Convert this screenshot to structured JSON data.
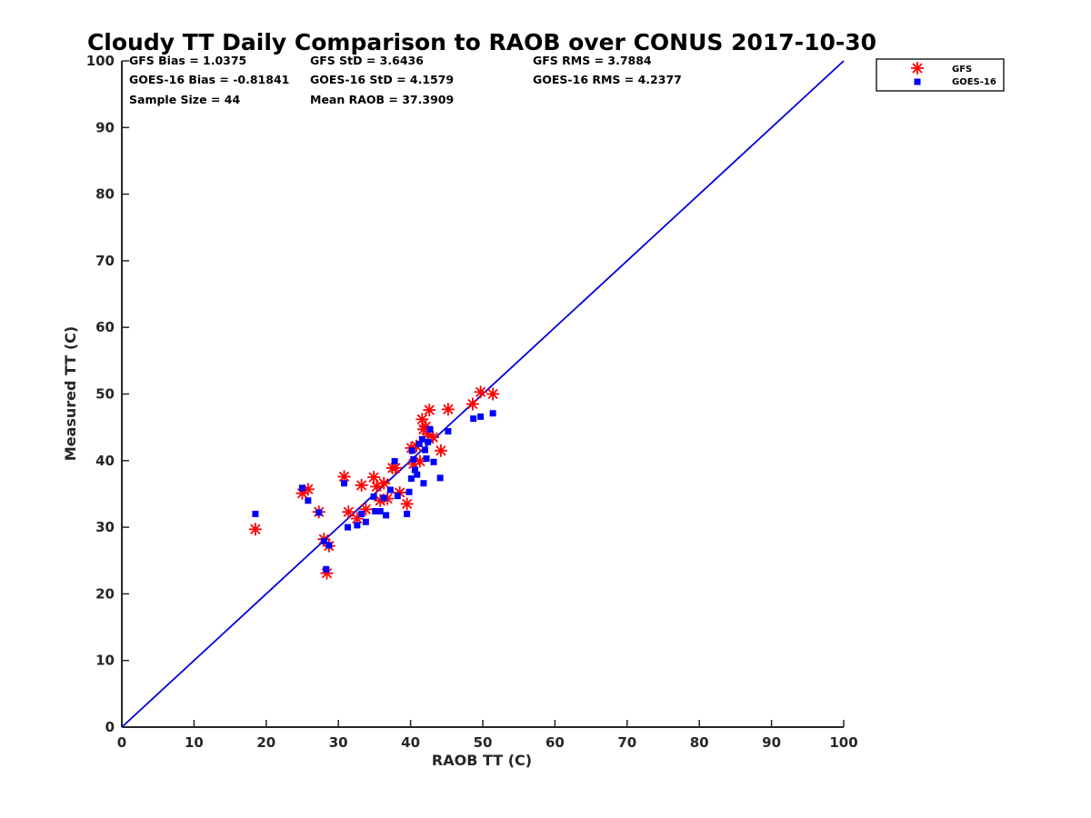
{
  "chart_data": {
    "type": "scatter",
    "title": "Cloudy TT Daily Comparison to RAOB over CONUS 2017-10-30",
    "xlabel": "RAOB TT (C)",
    "ylabel": "Measured TT (C)",
    "xlim": [
      0,
      100
    ],
    "ylim": [
      0,
      100
    ],
    "xticks": [
      0,
      10,
      20,
      30,
      40,
      50,
      60,
      70,
      80,
      90,
      100
    ],
    "yticks": [
      0,
      10,
      20,
      30,
      40,
      50,
      60,
      70,
      80,
      90,
      100
    ],
    "grid": false,
    "legend_position": "outside top-right",
    "reference_line": {
      "from": [
        0,
        0
      ],
      "to": [
        100,
        100
      ],
      "color": "#0000dd"
    },
    "stats": [
      [
        "GFS Bias = 1.0375",
        "GFS StD = 3.6436",
        "GFS RMS = 3.7884"
      ],
      [
        "GOES-16 Bias = -0.81841",
        "GOES-16 StD = 4.1579",
        "GOES-16 RMS = 4.2377"
      ],
      [
        "Sample Size = 44",
        "Mean RAOB = 37.3909",
        ""
      ]
    ],
    "series": [
      {
        "name": "GFS",
        "marker": "asterisk",
        "color": "#ff0000",
        "points": [
          [
            18.5,
            29.7
          ],
          [
            25.0,
            35.1
          ],
          [
            25.8,
            35.7
          ],
          [
            27.3,
            32.3
          ],
          [
            28.0,
            28.2
          ],
          [
            28.7,
            27.2
          ],
          [
            28.4,
            23.1
          ],
          [
            30.8,
            37.6
          ],
          [
            31.4,
            32.3
          ],
          [
            32.6,
            31.3
          ],
          [
            33.2,
            36.3
          ],
          [
            33.8,
            32.7
          ],
          [
            34.9,
            37.5
          ],
          [
            35.3,
            36.1
          ],
          [
            35.8,
            34.0
          ],
          [
            36.3,
            36.6
          ],
          [
            36.8,
            34.3
          ],
          [
            37.5,
            38.9
          ],
          [
            37.9,
            38.9
          ],
          [
            38.5,
            35.2
          ],
          [
            39.5,
            33.5
          ],
          [
            40.1,
            41.9
          ],
          [
            40.4,
            39.5
          ],
          [
            40.8,
            42.2
          ],
          [
            41.3,
            39.9
          ],
          [
            41.6,
            46.2
          ],
          [
            41.8,
            44.7
          ],
          [
            42.1,
            45.1
          ],
          [
            42.4,
            44.0
          ],
          [
            42.6,
            47.6
          ],
          [
            43.1,
            43.5
          ],
          [
            44.2,
            41.5
          ],
          [
            45.2,
            47.7
          ],
          [
            48.6,
            48.5
          ],
          [
            49.7,
            50.3
          ],
          [
            51.4,
            50.0
          ]
        ]
      },
      {
        "name": "GOES-16",
        "marker": "square",
        "color": "#0000ff",
        "points": [
          [
            18.5,
            32.0
          ],
          [
            25.0,
            35.9
          ],
          [
            25.8,
            34.0
          ],
          [
            27.3,
            32.2
          ],
          [
            28.0,
            27.9
          ],
          [
            28.3,
            23.7
          ],
          [
            28.7,
            27.3
          ],
          [
            30.8,
            36.6
          ],
          [
            31.3,
            30.0
          ],
          [
            32.6,
            30.3
          ],
          [
            33.2,
            32.0
          ],
          [
            33.8,
            30.8
          ],
          [
            34.9,
            34.6
          ],
          [
            35.1,
            32.4
          ],
          [
            35.8,
            32.4
          ],
          [
            36.3,
            34.4
          ],
          [
            36.6,
            31.8
          ],
          [
            37.2,
            35.6
          ],
          [
            37.8,
            39.9
          ],
          [
            38.2,
            34.7
          ],
          [
            39.5,
            32.0
          ],
          [
            39.8,
            35.3
          ],
          [
            40.1,
            37.3
          ],
          [
            40.2,
            41.5
          ],
          [
            40.4,
            40.2
          ],
          [
            40.6,
            38.6
          ],
          [
            40.9,
            37.9
          ],
          [
            41.2,
            42.5
          ],
          [
            41.6,
            43.2
          ],
          [
            41.8,
            36.6
          ],
          [
            42.0,
            41.6
          ],
          [
            42.2,
            40.3
          ],
          [
            42.4,
            42.8
          ],
          [
            42.7,
            44.7
          ],
          [
            43.2,
            39.8
          ],
          [
            44.1,
            37.4
          ],
          [
            45.2,
            44.4
          ],
          [
            48.7,
            46.3
          ],
          [
            49.7,
            46.6
          ],
          [
            51.4,
            47.1
          ]
        ]
      }
    ]
  }
}
